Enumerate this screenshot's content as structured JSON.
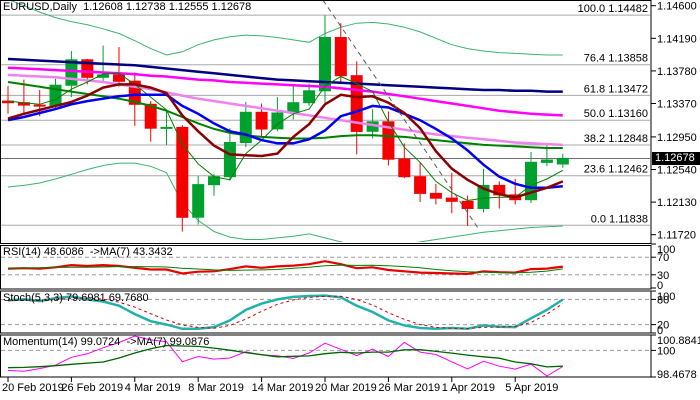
{
  "title": "EURUSD,Daily  1.12608 1.12738 1.12555 1.12678",
  "symbol": "EURUSD",
  "timeframe": "Daily",
  "quote": {
    "open": "1.12608",
    "high": "1.12738",
    "low": "1.12555",
    "close": "1.12678"
  },
  "current_price": "1.12678",
  "colors": {
    "bull": "#00a12f",
    "bear": "#f40000",
    "grid": "#a8a8a8",
    "fib_label": "#808080",
    "level_dash": "#9a9a9a",
    "trend": "#5a5a5a",
    "frame": "#000000"
  },
  "price_axis": {
    "labels": [
      "1.14600",
      "1.14190",
      "1.13780",
      "1.13370",
      "1.12950",
      "1.12540",
      "1.12130",
      "1.11720"
    ],
    "values": [
      1.146,
      1.1419,
      1.1378,
      1.1337,
      1.1295,
      1.1254,
      1.1213,
      1.1172
    ]
  },
  "date_axis": {
    "ticks": [
      {
        "label": "20 Feb 2019",
        "index": 0
      },
      {
        "label": "26 Feb 2019",
        "index": 4
      },
      {
        "label": "4 Mar 2019",
        "index": 8
      },
      {
        "label": "8 Mar 2019",
        "index": 12
      },
      {
        "label": "14 Mar 2019",
        "index": 16
      },
      {
        "label": "20 Mar 2019",
        "index": 20
      },
      {
        "label": "26 Mar 2019",
        "index": 24
      },
      {
        "label": "1 Apr 2019",
        "index": 28
      },
      {
        "label": "5 Apr 2019",
        "index": 32
      }
    ]
  },
  "fibonacci": [
    {
      "level": "100.0",
      "text": "1.14482",
      "price": 1.14482
    },
    {
      "level": "76.4",
      "text": "1.13858",
      "price": 1.13858
    },
    {
      "level": "61.8",
      "text": "1.13472",
      "price": 1.13472
    },
    {
      "level": "50.0",
      "text": "1.13160",
      "price": 1.1316
    },
    {
      "level": "38.2",
      "text": "1.12848",
      "price": 1.12848
    },
    {
      "level": "23.6",
      "text": "1.12462",
      "price": 1.12462
    },
    {
      "level": "0.0",
      "text": "1.11838",
      "price": 1.11838
    }
  ],
  "chart_data": [
    {
      "type": "candlestick",
      "title": "EURUSD Daily",
      "ylim": [
        1.1172,
        1.146
      ],
      "current_price": 1.12678,
      "trendline": {
        "from": [
          19.87,
          1.14672
        ],
        "to": [
          29.65,
          1.11804
        ],
        "style": "dashed"
      },
      "candles": [
        [
          1.134,
          1.1359,
          1.1324,
          1.1338
        ],
        [
          1.1338,
          1.1367,
          1.1324,
          1.1335
        ],
        [
          1.1335,
          1.1354,
          1.1321,
          1.1334
        ],
        [
          1.1334,
          1.1368,
          1.1331,
          1.136
        ],
        [
          1.136,
          1.1403,
          1.1345,
          1.1392
        ],
        [
          1.1392,
          1.1393,
          1.1361,
          1.137
        ],
        [
          1.137,
          1.141,
          1.1365,
          1.1373
        ],
        [
          1.1373,
          1.1408,
          1.1358,
          1.1365
        ],
        [
          1.1365,
          1.1376,
          1.1309,
          1.1336
        ],
        [
          1.1336,
          1.134,
          1.1289,
          1.1306
        ],
        [
          1.1306,
          1.1329,
          1.1285,
          1.1307
        ],
        [
          1.1307,
          1.131,
          1.1176,
          1.1194
        ],
        [
          1.1194,
          1.1246,
          1.1185,
          1.1235
        ],
        [
          1.1235,
          1.1248,
          1.1221,
          1.1245
        ],
        [
          1.1245,
          1.1306,
          1.124,
          1.1288
        ],
        [
          1.1288,
          1.1339,
          1.1282,
          1.1326
        ],
        [
          1.1326,
          1.1337,
          1.1294,
          1.1305
        ],
        [
          1.1305,
          1.1345,
          1.1302,
          1.1325
        ],
        [
          1.1325,
          1.136,
          1.1317,
          1.1338
        ],
        [
          1.1338,
          1.1362,
          1.1334,
          1.1353
        ],
        [
          1.1353,
          1.1448,
          1.1336,
          1.142
        ],
        [
          1.142,
          1.1438,
          1.1363,
          1.1372
        ],
        [
          1.1372,
          1.139,
          1.1273,
          1.1302
        ],
        [
          1.1302,
          1.133,
          1.1293,
          1.1314
        ],
        [
          1.1314,
          1.1327,
          1.1259,
          1.1267
        ],
        [
          1.1267,
          1.1287,
          1.1243,
          1.1245
        ],
        [
          1.1245,
          1.1263,
          1.1213,
          1.1224
        ],
        [
          1.1224,
          1.1236,
          1.121,
          1.1218
        ],
        [
          1.1218,
          1.125,
          1.1199,
          1.1214
        ],
        [
          1.1214,
          1.1221,
          1.1183,
          1.1205
        ],
        [
          1.1205,
          1.1255,
          1.12,
          1.1234
        ],
        [
          1.1234,
          1.1239,
          1.1205,
          1.1222
        ],
        [
          1.1222,
          1.1242,
          1.121,
          1.1216
        ],
        [
          1.1216,
          1.1276,
          1.1212,
          1.1263
        ],
        [
          1.1263,
          1.1285,
          1.1258,
          1.1266
        ],
        [
          1.1261,
          1.1274,
          1.1256,
          1.1268
        ]
      ],
      "overlays": [
        {
          "name": "band-upper",
          "color": "#3cb371",
          "width": 1,
          "layer": "back",
          "values": [
            1.1468,
            1.146,
            1.1452,
            1.1445,
            1.144,
            1.1436,
            1.1431,
            1.1425,
            1.1416,
            1.1406,
            1.1398,
            1.1402,
            1.1411,
            1.1417,
            1.1421,
            1.1423,
            1.1422,
            1.142,
            1.1417,
            1.1414,
            1.1425,
            1.1433,
            1.1438,
            1.1439,
            1.1437,
            1.1433,
            1.1427,
            1.1419,
            1.1411,
            1.1406,
            1.1403,
            1.1401,
            1.14,
            1.1399,
            1.1398,
            1.1398
          ]
        },
        {
          "name": "band-lower",
          "color": "#3cb371",
          "width": 1,
          "layer": "back",
          "values": [
            1.1232,
            1.1234,
            1.1237,
            1.1242,
            1.1248,
            1.1254,
            1.1259,
            1.1262,
            1.1262,
            1.1258,
            1.125,
            1.1212,
            1.119,
            1.1176,
            1.1169,
            1.1166,
            1.1166,
            1.1168,
            1.117,
            1.1173,
            1.1168,
            1.1163,
            1.1159,
            1.1157,
            1.1158,
            1.116,
            1.1163,
            1.1166,
            1.1169,
            1.1172,
            1.1175,
            1.1177,
            1.1179,
            1.1181,
            1.1182,
            1.1183
          ]
        },
        {
          "name": "ma-violet",
          "color": "#ee82ee",
          "width": 2.5,
          "layer": "front",
          "values": [
            1.1373,
            1.1372,
            1.1371,
            1.137,
            1.1368,
            1.1366,
            1.1364,
            1.1361,
            1.1358,
            1.1355,
            1.1351,
            1.1347,
            1.1343,
            1.134,
            1.1337,
            1.1334,
            1.1331,
            1.1328,
            1.1325,
            1.1322,
            1.1319,
            1.1316,
            1.1313,
            1.131,
            1.1307,
            1.1304,
            1.1301,
            1.1298,
            1.1296,
            1.1294,
            1.1292,
            1.129,
            1.1288,
            1.1287,
            1.1286,
            1.1285
          ]
        },
        {
          "name": "ma-magenta",
          "color": "#ff00ff",
          "width": 2.5,
          "layer": "front",
          "values": [
            1.1382,
            1.1381,
            1.138,
            1.1379,
            1.1378,
            1.1377,
            1.1376,
            1.1375,
            1.1374,
            1.1372,
            1.1371,
            1.1369,
            1.1367,
            1.1366,
            1.1364,
            1.1363,
            1.1362,
            1.1361,
            1.136,
            1.1359,
            1.1358,
            1.1356,
            1.1354,
            1.1352,
            1.1349,
            1.1346,
            1.1343,
            1.134,
            1.1337,
            1.1334,
            1.1331,
            1.1328,
            1.1326,
            1.1324,
            1.1323,
            1.1322
          ]
        },
        {
          "name": "ma-navy",
          "color": "#000080",
          "width": 2.5,
          "layer": "front",
          "values": [
            1.1393,
            1.1392,
            1.1391,
            1.139,
            1.1389,
            1.1388,
            1.1387,
            1.1386,
            1.1385,
            1.1383,
            1.1381,
            1.1379,
            1.1377,
            1.1375,
            1.1373,
            1.1371,
            1.1369,
            1.1367,
            1.1366,
            1.1365,
            1.1364,
            1.1363,
            1.1362,
            1.1361,
            1.136,
            1.1359,
            1.1358,
            1.1357,
            1.1356,
            1.1355,
            1.1354,
            1.1354,
            1.1353,
            1.1353,
            1.1352,
            1.1352
          ]
        },
        {
          "name": "ma-green-slow",
          "color": "#008000",
          "width": 2,
          "layer": "front",
          "values": [
            1.1364,
            1.1361,
            1.1358,
            1.1355,
            1.1352,
            1.1349,
            1.1346,
            1.1343,
            1.1339,
            1.1334,
            1.1328,
            1.132,
            1.1312,
            1.1305,
            1.13,
            1.1297,
            1.1295,
            1.1294,
            1.1293,
            1.1293,
            1.1294,
            1.1296,
            1.1297,
            1.1297,
            1.1296,
            1.1295,
            1.1293,
            1.1291,
            1.1289,
            1.1287,
            1.1285,
            1.1284,
            1.1283,
            1.1282,
            1.1281,
            1.1281
          ]
        },
        {
          "name": "ma-green-fast",
          "color": "#008000",
          "width": 1,
          "layer": "front",
          "values": [
            1.134,
            1.1338,
            1.1336,
            1.1342,
            1.1355,
            1.1364,
            1.1374,
            1.1375,
            1.1361,
            1.1345,
            1.1329,
            1.1286,
            1.1261,
            1.1245,
            1.1241,
            1.1274,
            1.1291,
            1.1311,
            1.1324,
            1.133,
            1.1359,
            1.1371,
            1.1362,
            1.1352,
            1.1314,
            1.1282,
            1.1263,
            1.1239,
            1.1225,
            1.1215,
            1.1218,
            1.1219,
            1.1219,
            1.1234,
            1.1242,
            1.1253
          ]
        },
        {
          "name": "ma-blue",
          "color": "#0000ee",
          "width": 2.5,
          "layer": "front",
          "values": [
            1.1316,
            1.132,
            1.1325,
            1.133,
            1.1336,
            1.134,
            1.1343,
            1.1346,
            1.1348,
            1.1348,
            1.1348,
            1.1334,
            1.1324,
            1.1312,
            1.1302,
            1.1298,
            1.1291,
            1.1287,
            1.1287,
            1.1292,
            1.1303,
            1.1321,
            1.1327,
            1.1334,
            1.1332,
            1.1324,
            1.1316,
            1.1305,
            1.1293,
            1.1278,
            1.126,
            1.1245,
            1.1236,
            1.1231,
            1.1231,
            1.1233
          ]
        },
        {
          "name": "ma-maroon",
          "color": "#8b0000",
          "width": 2.5,
          "layer": "front",
          "values": [
            1.1318,
            1.1324,
            1.1329,
            1.1334,
            1.1339,
            1.1347,
            1.1357,
            1.1361,
            1.1361,
            1.1357,
            1.135,
            1.1322,
            1.1302,
            1.1284,
            1.1273,
            1.1272,
            1.1271,
            1.1274,
            1.1295,
            1.1311,
            1.1336,
            1.1348,
            1.1345,
            1.1346,
            1.1338,
            1.1325,
            1.1306,
            1.1277,
            1.1255,
            1.1241,
            1.123,
            1.1223,
            1.1219,
            1.1225,
            1.1231,
            1.1239
          ]
        }
      ]
    },
    {
      "type": "line",
      "name": "rsi",
      "label": "RSI(14) 48.6086  ->MA(7) 43.3432",
      "ylim": [
        0,
        100
      ],
      "levels": [
        70,
        30
      ],
      "axis_labels": [
        {
          "text": "100",
          "v": 100
        },
        {
          "text": "70",
          "v": 70
        },
        {
          "text": "30",
          "v": 30
        },
        {
          "text": "0",
          "v": 0
        }
      ],
      "series": [
        {
          "name": "rsi-line",
          "color": "#e60000",
          "width": 2.2,
          "dash": null,
          "values": [
            44,
            45,
            44,
            47,
            52,
            50,
            52,
            50,
            46,
            42,
            42,
            33,
            37,
            38,
            43,
            49,
            46,
            49,
            51,
            54,
            61,
            54,
            45,
            47,
            41,
            38,
            35,
            34,
            33,
            32,
            38,
            36,
            35,
            43,
            44,
            48.6
          ]
        },
        {
          "name": "rsi-ma",
          "color": "#007f00",
          "width": 1,
          "dash": null,
          "values": [
            45,
            45.5,
            46,
            46.5,
            47,
            47.3,
            47.7,
            48.6,
            48.7,
            48.4,
            47.7,
            45,
            43.1,
            41.1,
            40.1,
            40.6,
            41.1,
            42.1,
            44.7,
            47.1,
            50.4,
            52,
            51.4,
            51.6,
            50.4,
            48.6,
            45.9,
            42,
            39,
            37.1,
            35.9,
            35.1,
            34.7,
            35.9,
            38.5,
            43.3
          ]
        }
      ]
    },
    {
      "type": "line",
      "name": "stochastic",
      "label": "Stoch(5,3,3) 79.6981 69.7680",
      "ylim": [
        0,
        100
      ],
      "levels": [
        80,
        20
      ],
      "axis_labels": [
        {
          "text": "100",
          "v": 100
        },
        {
          "text": "80",
          "v": 80
        },
        {
          "text": "20",
          "v": 20
        },
        {
          "text": "0",
          "v": 0
        }
      ],
      "series": [
        {
          "name": "stoch-k",
          "color": "#20b2aa",
          "width": 2.5,
          "dash": null,
          "values": [
            78,
            80,
            76,
            83,
            87,
            80,
            75,
            65,
            45,
            28,
            20,
            10,
            10,
            14,
            30,
            55,
            70,
            80,
            86,
            88,
            89,
            85,
            65,
            50,
            30,
            18,
            12,
            10,
            12,
            10,
            18,
            15,
            14,
            35,
            55,
            79.7
          ]
        },
        {
          "name": "stoch-d",
          "color": "#d40000",
          "width": 1,
          "dash": "3,3",
          "values": [
            77,
            78,
            78,
            79.7,
            82,
            83.3,
            80.7,
            73.3,
            61.7,
            46,
            31,
            19.3,
            13.3,
            11.3,
            18,
            33,
            51.7,
            68.3,
            78.7,
            84.7,
            87.7,
            87.3,
            79.7,
            66.7,
            48.3,
            32.7,
            20,
            13.3,
            11.3,
            10.7,
            13.3,
            14.3,
            15.7,
            25,
            45,
            69.8
          ]
        }
      ]
    },
    {
      "type": "line",
      "name": "momentum",
      "label": "Momentum(14) 99.0724  ->MA(7) 99.0876",
      "ylim": [
        98.4678,
        100.8841
      ],
      "levels": [
        100
      ],
      "axis_labels": [
        {
          "text": "100.8841",
          "v": 100.8841
        },
        {
          "text": "100",
          "v": 100
        },
        {
          "text": "98.4678",
          "v": 98.4678
        }
      ],
      "series": [
        {
          "name": "momentum-line",
          "color": "#ff00ff",
          "width": 1,
          "dash": null,
          "values": [
            98.85,
            98.8,
            98.95,
            99.15,
            99.6,
            99.8,
            100.15,
            100.45,
            100.88,
            100.6,
            100.5,
            99.35,
            99.65,
            99.5,
            99.56,
            99.92,
            99.74,
            99.69,
            99.53,
            99.85,
            100.41,
            100.06,
            99.7,
            100.07,
            99.65,
            100.46,
            99.9,
            99.76,
            99.34,
            98.93,
            99.37,
            99.09,
            98.92,
            99.21,
            98.47,
            99.07
          ]
        },
        {
          "name": "momentum-ma",
          "color": "#006400",
          "width": 1.3,
          "dash": null,
          "values": [
            99,
            99.02,
            99.06,
            99.12,
            99.2,
            99.27,
            99.33,
            99.56,
            99.85,
            100.09,
            100.28,
            100.25,
            100.23,
            100.13,
            100.01,
            99.87,
            99.75,
            99.63,
            99.66,
            99.68,
            99.81,
            99.89,
            99.85,
            99.9,
            99.9,
            100.03,
            100.04,
            99.94,
            99.84,
            99.73,
            99.63,
            99.55,
            99.33,
            99.23,
            99.05,
            99.09
          ]
        }
      ]
    }
  ]
}
